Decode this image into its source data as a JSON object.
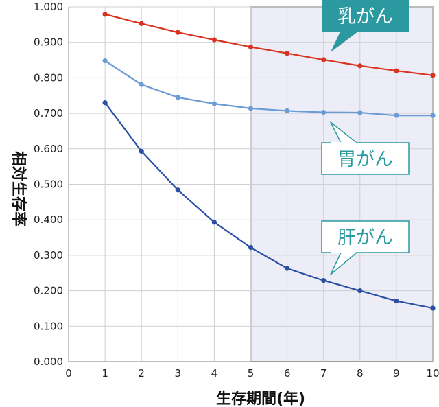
{
  "chart_data": {
    "type": "line",
    "xlabel": "生存期間(年)",
    "ylabel": "相対生存率",
    "xlim": [
      0,
      10
    ],
    "ylim": [
      0,
      1
    ],
    "x_ticks": [
      "0",
      "1",
      "2",
      "3",
      "4",
      "5",
      "6",
      "7",
      "8",
      "9",
      "10"
    ],
    "y_ticks": [
      "0.000",
      "0.100",
      "0.200",
      "0.300",
      "0.400",
      "0.500",
      "0.600",
      "0.700",
      "0.800",
      "0.900",
      "1.000"
    ],
    "grid": true,
    "highlight_range": [
      5,
      10
    ],
    "x": [
      1,
      2,
      3,
      4,
      5,
      6,
      7,
      8,
      9,
      10
    ],
    "series": [
      {
        "name": "乳がん",
        "color": "#d9321f",
        "values": [
          0.979,
          0.953,
          0.928,
          0.907,
          0.887,
          0.869,
          0.851,
          0.834,
          0.82,
          0.807
        ]
      },
      {
        "name": "胃がん",
        "color": "#6b9bd6",
        "values": [
          0.848,
          0.781,
          0.745,
          0.727,
          0.714,
          0.707,
          0.703,
          0.702,
          0.694,
          0.694
        ]
      },
      {
        "name": "肝がん",
        "color": "#2a4fa3",
        "values": [
          0.73,
          0.593,
          0.484,
          0.393,
          0.322,
          0.263,
          0.229,
          0.2,
          0.171,
          0.151
        ]
      }
    ]
  }
}
